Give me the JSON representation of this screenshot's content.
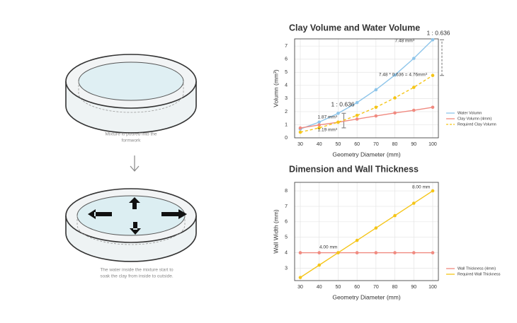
{
  "diagram": {
    "captions": [
      [
        "Mixture is poured into the",
        "formwork"
      ],
      [
        "The water inside the mixture start to",
        "soak the clay from inside to outside."
      ]
    ]
  },
  "chart_data": [
    {
      "type": "line",
      "title": "Clay Volume and Water Volume",
      "x_label": "Geometry Diameter (mm)",
      "y_label": "Volumn (mm³)",
      "x": [
        30,
        40,
        50,
        60,
        70,
        80,
        90,
        100
      ],
      "series": [
        {
          "name": "Water Volumn",
          "color": "#8ec5ea",
          "dashed": false,
          "values": [
            0.67,
            1.2,
            1.87,
            2.69,
            3.67,
            4.79,
            6.06,
            7.48
          ]
        },
        {
          "name": "Clay Volumn (4mm)",
          "color": "#f08a80",
          "dashed": false,
          "values": [
            0.75,
            0.98,
            1.19,
            1.43,
            1.67,
            1.9,
            2.1,
            2.33
          ]
        },
        {
          "name": "Required Clay Volumn",
          "color": "#f5c518",
          "dashed": true,
          "values": [
            0.43,
            0.76,
            1.19,
            1.71,
            2.33,
            3.05,
            3.85,
            4.76
          ]
        }
      ],
      "xlim": [
        27,
        103
      ],
      "xticks": [
        30,
        40,
        50,
        60,
        70,
        80,
        90,
        100
      ],
      "ylim": [
        0,
        7.55
      ],
      "yticks": [
        0,
        1,
        2,
        3,
        4,
        5,
        6,
        7
      ],
      "grid": true,
      "legend": "lower-right-outside",
      "annotations": [
        "1 : 0.636",
        "7.48 mm³",
        "7.48 * 0.636 = 4.76mm³",
        "1 : 0.636",
        "1.87 mm³",
        "1.19 mm³"
      ]
    },
    {
      "type": "line",
      "title": "Dimension and Wall Thickness",
      "x_label": "Geometry Diameter (mm)",
      "y_label": "Wall Width (mm)",
      "x": [
        30,
        40,
        50,
        60,
        70,
        80,
        90,
        100
      ],
      "series": [
        {
          "name": "Wall Thickness (4mm)",
          "color": "#f08a80",
          "dashed": false,
          "values": [
            4,
            4,
            4,
            4,
            4,
            4,
            4,
            4
          ]
        },
        {
          "name": "Required Wall Thickness",
          "color": "#f5c518",
          "dashed": false,
          "values": [
            2.4,
            3.2,
            4,
            4.8,
            5.6,
            6.4,
            7.2,
            8
          ]
        }
      ],
      "xlim": [
        27,
        103
      ],
      "xticks": [
        30,
        40,
        50,
        60,
        70,
        80,
        90,
        100
      ],
      "ylim": [
        2.2,
        8.55
      ],
      "yticks": [
        3,
        4,
        5,
        6,
        7,
        8
      ],
      "grid": true,
      "legend": "lower-right-outside",
      "annotations": [
        "4.00 mm",
        "8.00 mm"
      ]
    }
  ]
}
